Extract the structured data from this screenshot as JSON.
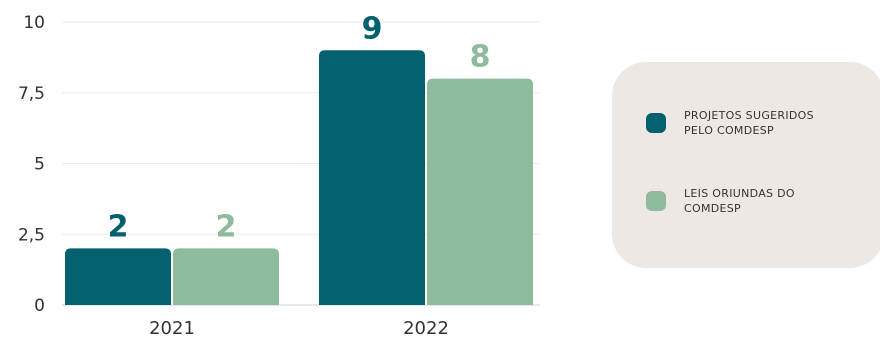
{
  "chart_data": {
    "type": "bar",
    "categories": [
      "2021",
      "2022"
    ],
    "series": [
      {
        "name": "PROJETOS SUGERIDOS PELO COMDESP",
        "values": [
          2,
          9
        ],
        "color": "#03606e"
      },
      {
        "name": "LEIS ORIUNDAS DO COMDESP",
        "values": [
          2,
          8
        ],
        "color": "#8dbb9c"
      }
    ],
    "data_labels": [
      [
        "2",
        "9"
      ],
      [
        "2",
        "8"
      ]
    ],
    "y_ticks": [
      0,
      2.5,
      5,
      7.5,
      10
    ],
    "y_tick_labels": [
      "0",
      "2,5",
      "5",
      "7,5",
      "10"
    ],
    "ylim": [
      0,
      10
    ],
    "grid": true,
    "legend_position": "right",
    "legend_lines": [
      [
        "PROJETOS SUGERIDOS",
        "PELO COMDESP"
      ],
      [
        "LEIS ORIUNDAS DO",
        "COMDESP"
      ]
    ]
  }
}
